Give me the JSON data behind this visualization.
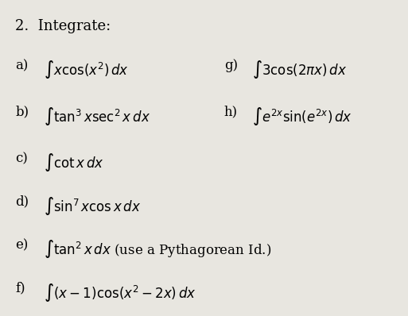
{
  "title": "2.  Integrate:",
  "background_color": "#e8e6e0",
  "text_color": "#000000",
  "items_left": [
    {
      "label": "a)",
      "expr": "$\\int x\\cos(x^2)\\,dx$"
    },
    {
      "label": "b)",
      "expr": "$\\int \\tan^3 x\\sec^2 x\\,dx$"
    },
    {
      "label": "c)",
      "expr": "$\\int \\cot x\\,dx$"
    },
    {
      "label": "d)",
      "expr": "$\\int \\sin^7 x\\cos x\\,dx$"
    },
    {
      "label": "e)",
      "expr": "$\\int \\tan^2 x\\,dx$ (use a Pythagorean Id.)"
    },
    {
      "label": "f)",
      "expr": "$\\int (x-1)\\cos(x^2-2x)\\,dx$"
    }
  ],
  "items_right": [
    {
      "label": "g)",
      "expr": "$\\int 3\\cos(2\\pi x)\\,dx$",
      "row": 0
    },
    {
      "label": "h)",
      "expr": "$\\int e^{2x}\\sin(e^{2x})\\,dx$",
      "row": 1
    }
  ],
  "figsize": [
    5.13,
    3.98
  ],
  "dpi": 100
}
